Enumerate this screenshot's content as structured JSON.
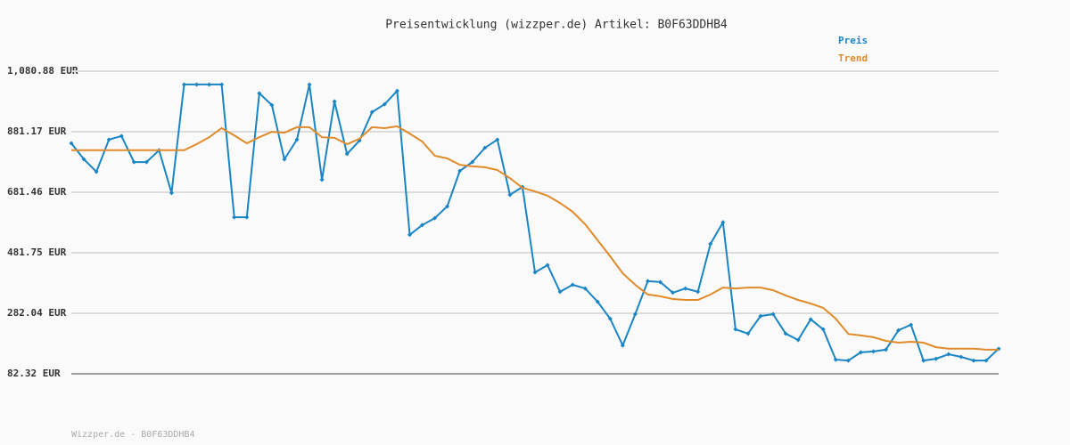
{
  "chart_data": {
    "type": "line",
    "title": "Preisentwicklung (wizzper.de) Artikel: B0F63DDHB4",
    "ylim": [
      82.32,
      1080.88
    ],
    "yticks": [
      {
        "value": 82.32,
        "label": "82.32 EUR"
      },
      {
        "value": 282.04,
        "label": "282.04 EUR"
      },
      {
        "value": 481.75,
        "label": "481.75 EUR"
      },
      {
        "value": 681.46,
        "label": "681.46 EUR"
      },
      {
        "value": 881.17,
        "label": "881.17 EUR"
      },
      {
        "value": 1080.88,
        "label": "1,080.88 EUR"
      }
    ],
    "grid": true,
    "legend": "top-right",
    "series": [
      {
        "name": "Preis",
        "color": "#1a85c4",
        "markers": true,
        "values": [
          843,
          790,
          749,
          855,
          867,
          781,
          781,
          820,
          679,
          1037,
          1037,
          1037,
          1037,
          599,
          599,
          1008,
          969,
          790,
          855,
          1037,
          723,
          981,
          808,
          852,
          946,
          972,
          1016,
          541,
          573,
          596,
          635,
          752,
          781,
          828,
          855,
          673,
          699,
          417,
          441,
          353,
          376,
          364,
          320,
          264,
          176,
          279,
          388,
          385,
          350,
          364,
          353,
          511,
          582,
          229,
          215,
          273,
          279,
          215,
          194,
          262,
          229,
          129,
          126,
          153,
          156,
          162,
          226,
          244,
          126,
          132,
          147,
          138,
          126,
          126,
          165
        ]
      },
      {
        "name": "Trend",
        "color": "#e08a2a",
        "markers": false,
        "values": [
          820,
          820,
          820,
          820,
          820,
          820,
          820,
          820,
          820,
          820,
          840,
          863,
          893,
          869,
          843,
          863,
          881,
          878,
          896,
          896,
          863,
          861,
          840,
          858,
          896,
          893,
          899,
          875,
          849,
          802,
          793,
          772,
          767,
          764,
          755,
          728,
          696,
          684,
          670,
          646,
          617,
          576,
          523,
          470,
          414,
          376,
          344,
          338,
          329,
          326,
          326,
          344,
          367,
          364,
          367,
          367,
          358,
          341,
          326,
          314,
          300,
          264,
          214,
          209,
          203,
          191,
          185,
          188,
          185,
          170,
          165,
          165,
          165,
          162,
          162
        ]
      }
    ]
  },
  "footer": "Wizzper.de - B0F63DDHB4"
}
